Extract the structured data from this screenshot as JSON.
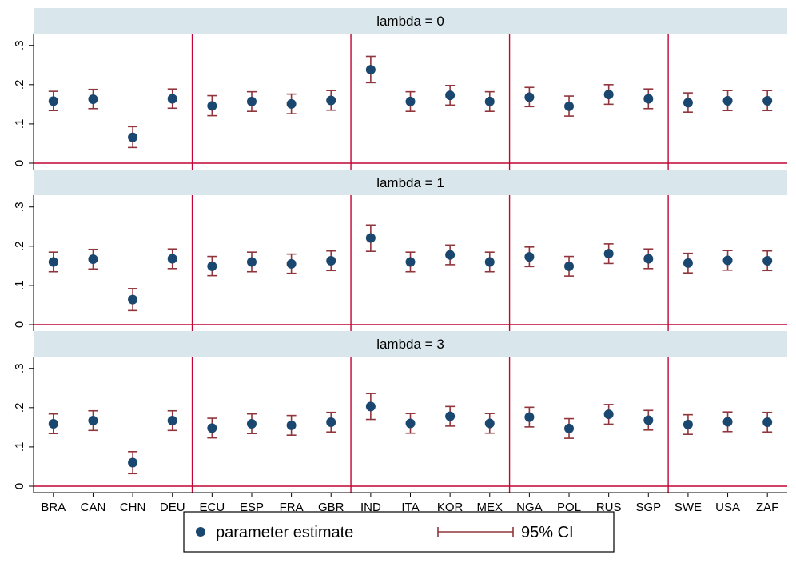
{
  "chart_data": {
    "type": "scatter",
    "subtype": "point-estimate with 95% CI error bars, faceted",
    "categories": [
      "BRA",
      "CAN",
      "CHN",
      "DEU",
      "ECU",
      "ESP",
      "FRA",
      "GBR",
      "IND",
      "ITA",
      "KOR",
      "MEX",
      "NGA",
      "POL",
      "RUS",
      "SGP",
      "SWE",
      "USA",
      "ZAF"
    ],
    "ylim": [
      0,
      0.33
    ],
    "yticks": [
      0,
      0.1,
      0.2,
      0.3
    ],
    "ytick_labels": [
      "0",
      ".1",
      ".2",
      ".3"
    ],
    "grid": false,
    "group_separators_after_index": [
      3,
      7,
      11,
      15
    ],
    "legend": {
      "placement": "bottom-center",
      "point_label": "parameter estimate",
      "ci_label": "95% CI"
    },
    "colors": {
      "point": "#1a476f",
      "ci": "#90353b",
      "separator": "#c10534",
      "strip_bg": "#d9e6eb"
    },
    "panels": [
      {
        "title": "lambda = 0",
        "estimate": [
          0.158,
          0.163,
          0.066,
          0.164,
          0.146,
          0.157,
          0.151,
          0.16,
          0.238,
          0.157,
          0.173,
          0.157,
          0.168,
          0.145,
          0.175,
          0.164,
          0.154,
          0.159,
          0.159
        ],
        "ci_low": [
          0.134,
          0.139,
          0.04,
          0.14,
          0.121,
          0.132,
          0.126,
          0.135,
          0.205,
          0.132,
          0.148,
          0.132,
          0.144,
          0.12,
          0.15,
          0.139,
          0.13,
          0.134,
          0.134
        ],
        "ci_high": [
          0.183,
          0.188,
          0.093,
          0.189,
          0.172,
          0.182,
          0.176,
          0.185,
          0.272,
          0.182,
          0.198,
          0.182,
          0.193,
          0.171,
          0.2,
          0.189,
          0.179,
          0.185,
          0.185
        ]
      },
      {
        "title": "lambda = 1",
        "estimate": [
          0.16,
          0.167,
          0.064,
          0.168,
          0.149,
          0.16,
          0.155,
          0.163,
          0.221,
          0.16,
          0.178,
          0.16,
          0.173,
          0.149,
          0.181,
          0.168,
          0.157,
          0.164,
          0.163
        ],
        "ci_low": [
          0.135,
          0.142,
          0.036,
          0.143,
          0.125,
          0.135,
          0.131,
          0.138,
          0.187,
          0.135,
          0.153,
          0.135,
          0.148,
          0.124,
          0.156,
          0.143,
          0.132,
          0.139,
          0.138
        ],
        "ci_high": [
          0.185,
          0.192,
          0.092,
          0.193,
          0.174,
          0.185,
          0.18,
          0.188,
          0.254,
          0.185,
          0.203,
          0.185,
          0.198,
          0.174,
          0.206,
          0.193,
          0.182,
          0.189,
          0.188
        ]
      },
      {
        "title": "lambda = 3",
        "estimate": [
          0.159,
          0.167,
          0.06,
          0.167,
          0.148,
          0.159,
          0.155,
          0.163,
          0.203,
          0.16,
          0.178,
          0.16,
          0.176,
          0.147,
          0.183,
          0.168,
          0.157,
          0.164,
          0.163
        ],
        "ci_low": [
          0.134,
          0.142,
          0.032,
          0.142,
          0.123,
          0.134,
          0.13,
          0.138,
          0.17,
          0.135,
          0.153,
          0.135,
          0.151,
          0.122,
          0.158,
          0.143,
          0.132,
          0.139,
          0.138
        ],
        "ci_high": [
          0.184,
          0.192,
          0.088,
          0.192,
          0.173,
          0.184,
          0.18,
          0.188,
          0.236,
          0.185,
          0.203,
          0.185,
          0.201,
          0.172,
          0.208,
          0.193,
          0.182,
          0.189,
          0.188
        ]
      }
    ]
  }
}
